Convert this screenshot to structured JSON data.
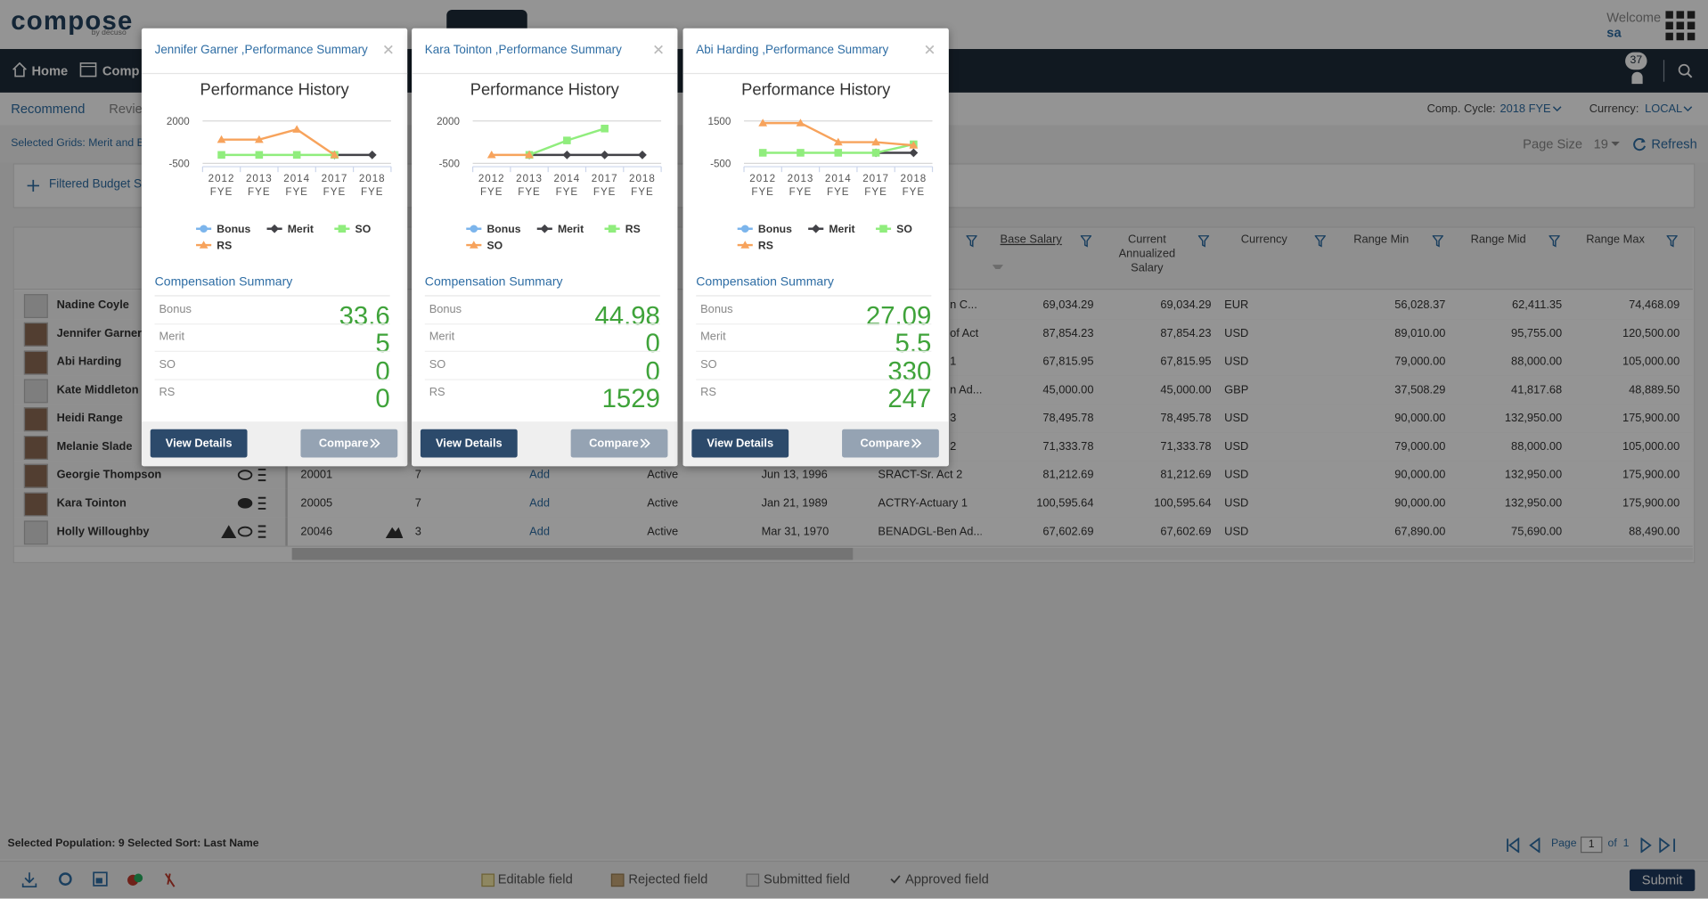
{
  "header": {
    "logo": "compose",
    "logo_tagline": "by decuso",
    "welcome": "Welcome",
    "user": "sa"
  },
  "nav": {
    "items": [
      "Home",
      "Comp"
    ],
    "notifications": 37
  },
  "subnav": {
    "tabs": [
      "Recommend",
      "Revie"
    ],
    "cycle_label": "Comp. Cycle:",
    "cycle": "2018 FYE",
    "currency_label": "Currency:",
    "currency": "LOCAL"
  },
  "toolbar": {
    "selected_grids": "Selected Grids: Merit and B",
    "page_size_label": "Page Size",
    "page_size": 19,
    "refresh": "Refresh"
  },
  "filter_box": {
    "label": "Filtered Budget S"
  },
  "table": {
    "columns": {
      "base": "Base Salary",
      "current": "Current Annualized Salary",
      "currency": "Currency",
      "min": "Range Min",
      "mid": "Range Mid",
      "max": "Range Max"
    },
    "rows": [
      {
        "name": "Nadine Coyle",
        "id": null,
        "grade": null,
        "action": null,
        "status": null,
        "hire_date": null,
        "job": "n C...",
        "base": "69,034.29",
        "current": "69,034.29",
        "currency": "EUR",
        "min": "56,028.37",
        "mid": "62,411.35",
        "max": "74,468.09"
      },
      {
        "name": "Jennifer Garner",
        "id": null,
        "grade": null,
        "action": null,
        "status": null,
        "hire_date": null,
        "job": "of Act",
        "base": "87,854.23",
        "current": "87,854.23",
        "currency": "USD",
        "min": "89,010.00",
        "mid": "95,755.00",
        "max": "120,500.00"
      },
      {
        "name": "Abi Harding",
        "id": null,
        "grade": null,
        "action": null,
        "status": null,
        "hire_date": null,
        "job": "1",
        "base": "67,815.95",
        "current": "67,815.95",
        "currency": "USD",
        "min": "79,000.00",
        "mid": "88,000.00",
        "max": "105,000.00"
      },
      {
        "name": "Kate Middleton",
        "id": null,
        "grade": null,
        "action": null,
        "status": null,
        "hire_date": null,
        "job": "n Ad...",
        "base": "45,000.00",
        "current": "45,000.00",
        "currency": "GBP",
        "min": "37,508.29",
        "mid": "41,817.68",
        "max": "48,889.50"
      },
      {
        "name": "Heidi Range",
        "id": null,
        "grade": null,
        "action": null,
        "status": null,
        "hire_date": null,
        "job": "3",
        "base": "78,495.78",
        "current": "78,495.78",
        "currency": "USD",
        "min": "90,000.00",
        "mid": "132,950.00",
        "max": "175,900.00"
      },
      {
        "name": "Melanie Slade",
        "id": null,
        "grade": null,
        "action": null,
        "status": null,
        "hire_date": null,
        "job": "2",
        "base": "71,333.78",
        "current": "71,333.78",
        "currency": "USD",
        "min": "79,000.00",
        "mid": "88,000.00",
        "max": "105,000.00"
      },
      {
        "name": "Georgie Thompson",
        "id": "20001",
        "grade": "7",
        "action": "Add",
        "status": "Active",
        "hire_date": "Jun 13, 1996",
        "job": "SRACT-Sr. Act 2",
        "base": "81,212.69",
        "current": "81,212.69",
        "currency": "USD",
        "min": "90,000.00",
        "mid": "132,950.00",
        "max": "175,900.00"
      },
      {
        "name": "Kara Tointon",
        "id": "20005",
        "grade": "7",
        "action": "Add",
        "status": "Active",
        "hire_date": "Jan 21, 1989",
        "job": "ACTRY-Actuary 1",
        "base": "100,595.64",
        "current": "100,595.64",
        "currency": "USD",
        "min": "90,000.00",
        "mid": "132,950.00",
        "max": "175,900.00"
      },
      {
        "name": "Holly Willoughby",
        "id": "20046",
        "grade": "3",
        "action": "Add",
        "status": "Active",
        "hire_date": "Mar 31, 1970",
        "job": "BENADGL-Ben Ad...",
        "base": "67,602.69",
        "current": "67,602.69",
        "currency": "USD",
        "min": "67,890.00",
        "mid": "75,690.00",
        "max": "88,490.00"
      }
    ]
  },
  "status": {
    "text": "Selected Population: 9 Selected Sort: Last Name",
    "page_label": "Page",
    "page": 1,
    "of_label": "of",
    "page_total": 1
  },
  "footer": {
    "legend": [
      "Editable field",
      "Rejected field",
      "Submitted field",
      "Approved field"
    ],
    "submit": "Submit"
  },
  "popups": [
    {
      "title": "Jennifer Garner ,Performance Summary",
      "chart": {
        "type": "line",
        "title": "Performance History",
        "categories": [
          "2012 FYE",
          "2013 FYE",
          "2014 FYE",
          "2017 FYE",
          "2018 FYE"
        ],
        "ylim": [
          -500,
          2000
        ],
        "yticks": [
          -500,
          2000
        ],
        "grid": true,
        "series": [
          {
            "name": "Bonus",
            "color": "#7cb5ec",
            "values": [
              null,
              null,
              null,
              null,
              null
            ]
          },
          {
            "name": "Merit",
            "color": "#434348",
            "values": [
              null,
              null,
              null,
              0,
              0
            ]
          },
          {
            "name": "SO",
            "color": "#90ed7d",
            "values": [
              0,
              0,
              0,
              0,
              null
            ]
          },
          {
            "name": "RS",
            "color": "#f7a35c",
            "values": [
              900,
              900,
              1500,
              0,
              null
            ]
          }
        ]
      },
      "summary_title": "Compensation Summary",
      "summary": [
        {
          "label": "Bonus",
          "value": 33.6
        },
        {
          "label": "Merit",
          "value": 5
        },
        {
          "label": "SO",
          "value": 0
        },
        {
          "label": "RS",
          "value": 0
        }
      ],
      "buttons": [
        "View Details",
        "Compare"
      ]
    },
    {
      "title": "Kara Tointon ,Performance Summary",
      "chart": {
        "type": "line",
        "title": "Performance History",
        "categories": [
          "2012 FYE",
          "2013 FYE",
          "2014 FYE",
          "2017 FYE",
          "2018 FYE"
        ],
        "ylim": [
          -500,
          2000
        ],
        "yticks": [
          -500,
          2000
        ],
        "grid": true,
        "series": [
          {
            "name": "Bonus",
            "color": "#7cb5ec",
            "values": [
              null,
              null,
              null,
              null,
              null
            ]
          },
          {
            "name": "Merit",
            "color": "#434348",
            "values": [
              null,
              0,
              0,
              0,
              0
            ]
          },
          {
            "name": "RS",
            "color": "#90ed7d",
            "values": [
              null,
              0,
              850,
              1550,
              null
            ]
          },
          {
            "name": "SO",
            "color": "#f7a35c",
            "values": [
              0,
              0,
              null,
              null,
              null
            ]
          }
        ]
      },
      "summary_title": "Compensation Summary",
      "summary": [
        {
          "label": "Bonus",
          "value": 44.98
        },
        {
          "label": "Merit",
          "value": 0
        },
        {
          "label": "SO",
          "value": 0
        },
        {
          "label": "RS",
          "value": 1529
        }
      ],
      "buttons": [
        "View Details",
        "Compare"
      ]
    },
    {
      "title": "Abi Harding ,Performance Summary",
      "chart": {
        "type": "line",
        "title": "Performance History",
        "categories": [
          "2012 FYE",
          "2013 FYE",
          "2014 FYE",
          "2017 FYE",
          "2018 FYE"
        ],
        "ylim": [
          -500,
          1500
        ],
        "yticks": [
          -500,
          1500
        ],
        "grid": true,
        "series": [
          {
            "name": "Bonus",
            "color": "#7cb5ec",
            "values": [
              null,
              null,
              null,
              null,
              null
            ]
          },
          {
            "name": "Merit",
            "color": "#434348",
            "values": [
              null,
              null,
              null,
              0,
              0
            ]
          },
          {
            "name": "SO",
            "color": "#90ed7d",
            "values": [
              0,
              0,
              0,
              0,
              400
            ]
          },
          {
            "name": "RS",
            "color": "#f7a35c",
            "values": [
              1400,
              1400,
              500,
              500,
              350
            ]
          }
        ]
      },
      "summary_title": "Compensation Summary",
      "summary": [
        {
          "label": "Bonus",
          "value": 27.09
        },
        {
          "label": "Merit",
          "value": 5.5
        },
        {
          "label": "SO",
          "value": 330
        },
        {
          "label": "RS",
          "value": 247
        }
      ],
      "buttons": [
        "View Details",
        "Compare"
      ]
    }
  ]
}
